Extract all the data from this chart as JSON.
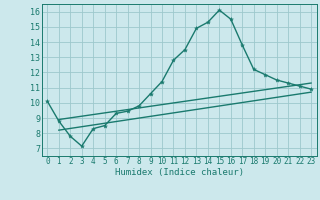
{
  "xlabel": "Humidex (Indice chaleur)",
  "background_color": "#cce8ec",
  "grid_color": "#9dc8cc",
  "line_color": "#1a7a6e",
  "xlim": [
    -0.5,
    23.5
  ],
  "ylim": [
    6.5,
    16.5
  ],
  "yticks": [
    7,
    8,
    9,
    10,
    11,
    12,
    13,
    14,
    15,
    16
  ],
  "xticks": [
    0,
    1,
    2,
    3,
    4,
    5,
    6,
    7,
    8,
    9,
    10,
    11,
    12,
    13,
    14,
    15,
    16,
    17,
    18,
    19,
    20,
    21,
    22,
    23
  ],
  "line1_x": [
    0,
    1,
    2,
    3,
    4,
    5,
    6,
    7,
    8,
    9,
    10,
    11,
    12,
    13,
    14,
    15,
    16,
    17,
    18,
    19,
    20,
    21,
    22,
    23
  ],
  "line1_y": [
    10.1,
    8.8,
    7.8,
    7.15,
    8.3,
    8.5,
    9.3,
    9.45,
    9.8,
    10.6,
    11.4,
    12.8,
    13.5,
    14.9,
    15.3,
    16.1,
    15.5,
    13.8,
    12.2,
    11.85,
    11.5,
    11.3,
    11.1,
    10.9
  ],
  "line2_x": [
    1,
    23
  ],
  "line2_y": [
    8.9,
    11.3
  ],
  "line3_x": [
    1,
    23
  ],
  "line3_y": [
    8.2,
    10.7
  ],
  "xlabel_fontsize": 6.5,
  "tick_fontsize": 5.5,
  "linewidth": 1.0,
  "markersize": 3.0
}
